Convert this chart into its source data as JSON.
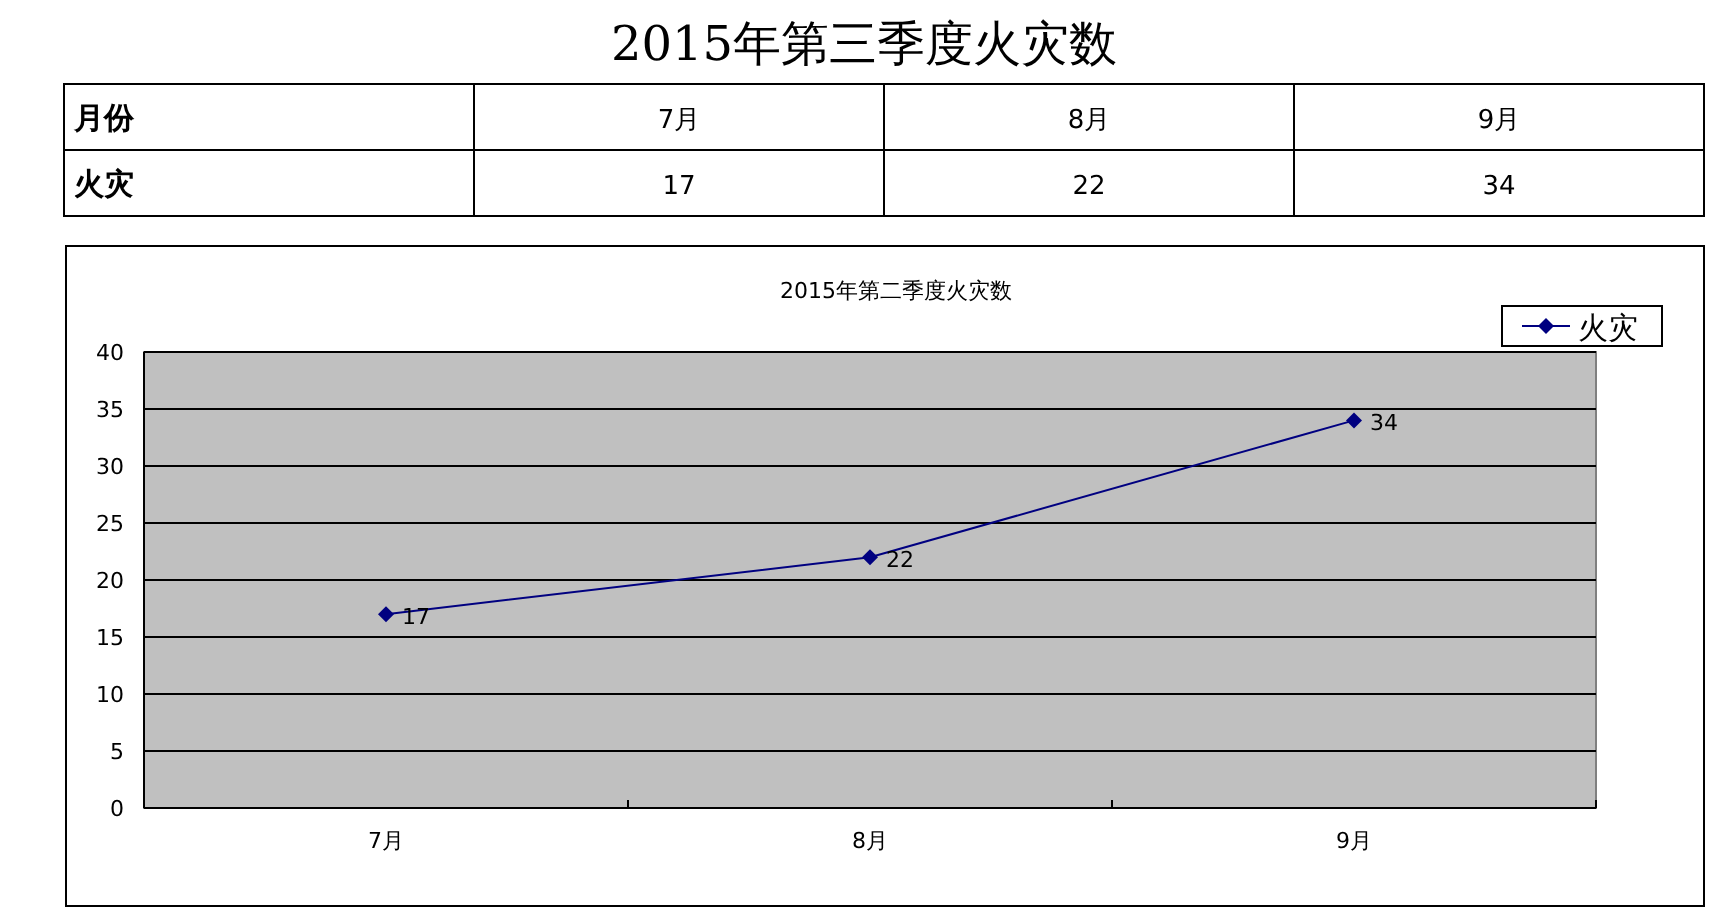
{
  "chart_data": [
    {
      "type": "other",
      "title": "2015年第三季度火灾数",
      "annotations": [
        "月份",
        "7月",
        "8月",
        "9月",
        "火灾",
        "17",
        "22",
        "34"
      ]
    },
    {
      "type": "line",
      "title": "2015年第二季度火灾数",
      "categories": [
        "7月",
        "8月",
        "9月"
      ],
      "series": [
        {
          "name": "火灾",
          "color": "#000080",
          "values": [
            17,
            22,
            34
          ]
        }
      ],
      "ylim": [
        0,
        40
      ],
      "yticks": [
        0,
        5,
        10,
        15,
        20,
        25,
        30,
        35,
        40
      ],
      "grid": "y",
      "legend": "top right",
      "marker": "diamond",
      "line_style": "solid",
      "data_labels": true
    }
  ]
}
